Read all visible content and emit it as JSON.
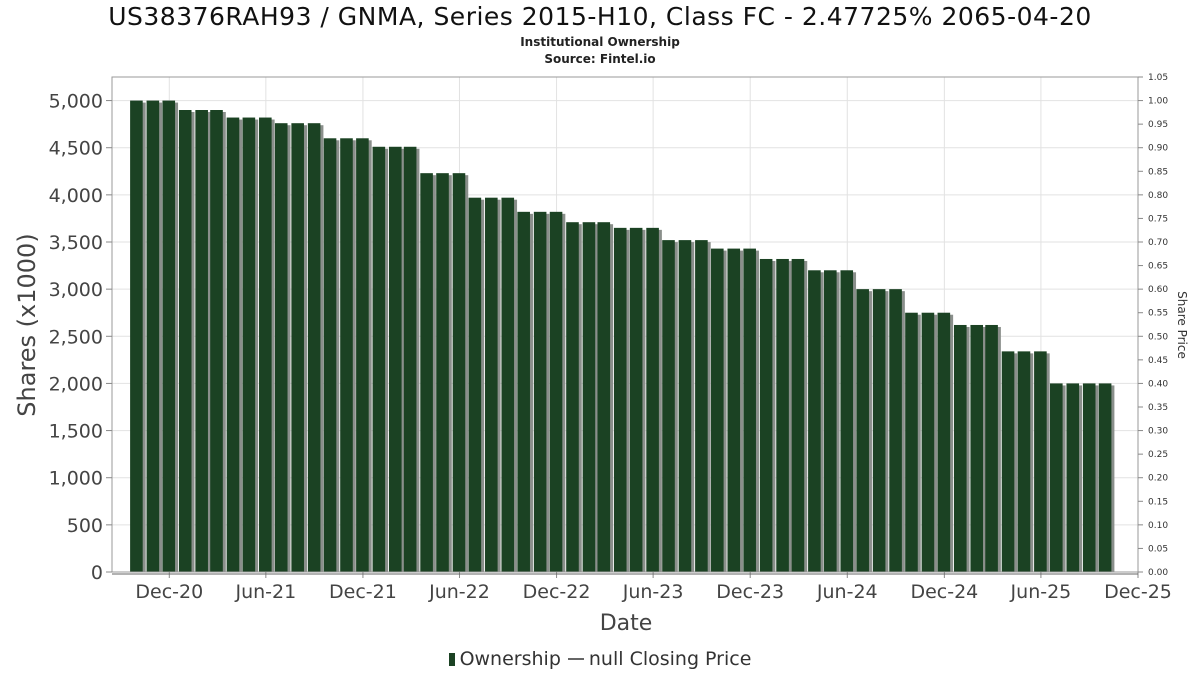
{
  "page": {
    "title": "US38376RAH93 / GNMA, Series 2015-H10, Class FC - 2.47725% 2065-04-20",
    "subtitle_1": "Institutional Ownership",
    "subtitle_2": "Source: Fintel.io"
  },
  "colors": {
    "bar": "#1b4223",
    "bar_shadow": "#8a8f8b",
    "grid": "#e2e2e2",
    "axis": "#888888"
  },
  "chart_data": {
    "type": "bar",
    "title": "US38376RAH93 / GNMA, Series 2015-H10, Class FC - 2.47725% 2065-04-20",
    "xlabel": "Date",
    "ylabel": "Shares (x1000)",
    "y2label": "Share Price",
    "ylim": [
      0,
      5250
    ],
    "y2lim": [
      0,
      1.05
    ],
    "xlim": [
      "2020-08-15",
      "2025-12-01"
    ],
    "yticks": [
      0,
      500,
      1000,
      1500,
      2000,
      2500,
      3000,
      3500,
      4000,
      4500,
      5000
    ],
    "ytick_labels": [
      "0",
      "500",
      "1,000",
      "1,500",
      "2,000",
      "2,500",
      "3,000",
      "3,500",
      "4,000",
      "4,500",
      "5,000"
    ],
    "y2ticks": [
      0,
      0.05,
      0.1,
      0.15,
      0.2,
      0.25,
      0.3,
      0.35,
      0.4,
      0.45,
      0.5,
      0.55,
      0.6,
      0.65,
      0.7,
      0.75,
      0.8,
      0.85,
      0.9,
      0.95,
      1.0,
      1.05
    ],
    "y2tick_labels": [
      "0.00",
      "0.05",
      "0.10",
      "0.15",
      "0.20",
      "0.25",
      "0.30",
      "0.35",
      "0.40",
      "0.45",
      "0.50",
      "0.55",
      "0.60",
      "0.65",
      "0.70",
      "0.75",
      "0.80",
      "0.85",
      "0.90",
      "0.95",
      "1.00",
      "1.05"
    ],
    "xticks": [
      {
        "label": "Dec-20",
        "date": "2020-12-01"
      },
      {
        "label": "Jun-21",
        "date": "2021-06-01"
      },
      {
        "label": "Dec-21",
        "date": "2021-12-01"
      },
      {
        "label": "Jun-22",
        "date": "2022-06-01"
      },
      {
        "label": "Dec-22",
        "date": "2022-12-01"
      },
      {
        "label": "Jun-23",
        "date": "2023-06-01"
      },
      {
        "label": "Dec-23",
        "date": "2023-12-01"
      },
      {
        "label": "Jun-24",
        "date": "2024-06-01"
      },
      {
        "label": "Dec-24",
        "date": "2024-12-01"
      },
      {
        "label": "Jun-25",
        "date": "2025-06-01"
      },
      {
        "label": "Dec-25",
        "date": "2025-12-01"
      }
    ],
    "grid": true,
    "legend_position": "bottom",
    "series": [
      {
        "name": "Ownership",
        "dates": [
          "2020-09-30",
          "2020-10-31",
          "2020-11-30",
          "2020-12-31",
          "2021-01-31",
          "2021-02-28",
          "2021-03-31",
          "2021-04-30",
          "2021-05-31",
          "2021-06-30",
          "2021-07-31",
          "2021-08-31",
          "2021-09-30",
          "2021-10-31",
          "2021-11-30",
          "2021-12-31",
          "2022-01-31",
          "2022-02-28",
          "2022-03-31",
          "2022-04-30",
          "2022-05-31",
          "2022-06-30",
          "2022-07-31",
          "2022-08-31",
          "2022-09-30",
          "2022-10-31",
          "2022-11-30",
          "2022-12-31",
          "2023-01-31",
          "2023-02-28",
          "2023-03-31",
          "2023-04-30",
          "2023-05-31",
          "2023-06-30",
          "2023-07-31",
          "2023-08-31",
          "2023-09-30",
          "2023-10-31",
          "2023-11-30",
          "2023-12-31",
          "2024-01-31",
          "2024-02-29",
          "2024-03-31",
          "2024-04-30",
          "2024-05-31",
          "2024-06-30",
          "2024-07-31",
          "2024-08-31",
          "2024-09-30",
          "2024-10-31",
          "2024-11-30",
          "2024-12-31",
          "2025-01-31",
          "2025-02-28",
          "2025-03-31",
          "2025-04-30",
          "2025-05-31",
          "2025-06-30",
          "2025-07-31",
          "2025-08-31",
          "2025-09-30"
        ],
        "values": [
          5000,
          5000,
          5000,
          4900,
          4900,
          4900,
          4820,
          4820,
          4820,
          4760,
          4760,
          4760,
          4600,
          4600,
          4600,
          4510,
          4510,
          4510,
          4230,
          4230,
          4230,
          3970,
          3970,
          3970,
          3820,
          3820,
          3820,
          3710,
          3710,
          3710,
          3650,
          3650,
          3650,
          3520,
          3520,
          3520,
          3430,
          3430,
          3430,
          3320,
          3320,
          3320,
          3200,
          3200,
          3200,
          3000,
          3000,
          3000,
          2750,
          2750,
          2750,
          2620,
          2620,
          2620,
          2340,
          2340,
          2340,
          2000,
          2000,
          2000,
          2000
        ]
      }
    ],
    "legend": [
      {
        "label": "Ownership",
        "kind": "bar"
      },
      {
        "label": "null Closing Price",
        "kind": "line"
      }
    ]
  }
}
